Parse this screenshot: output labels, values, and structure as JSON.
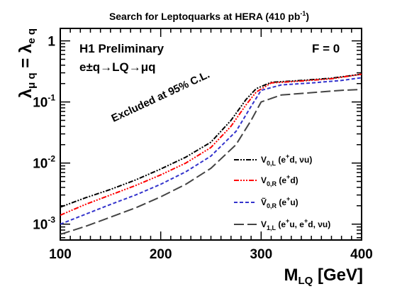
{
  "chart_data": {
    "type": "line",
    "title": "Search for Leptoquarks at HERA (410 pb",
    "title_sup": "-1",
    "title_end": ")",
    "xlabel": "M",
    "xlabel_sub": "LQ",
    "xlabel_unit": " [GeV]",
    "ylabel_main": "λ",
    "ylabel_sub1": "μ q",
    "ylabel_eq": " = λ",
    "ylabel_sub2": "e q",
    "x_range": [
      100,
      400
    ],
    "y_range": [
      0.00055,
      1.6
    ],
    "y_scale": "log",
    "x_ticks": [
      {
        "value": 100,
        "label": "100"
      },
      {
        "value": 200,
        "label": "200"
      },
      {
        "value": 300,
        "label": "300"
      },
      {
        "value": 400,
        "label": "400"
      }
    ],
    "y_ticks": [
      {
        "value": 1,
        "base": "1",
        "exp": ""
      },
      {
        "value": 0.1,
        "base": "10",
        "exp": "-1"
      },
      {
        "value": 0.01,
        "base": "10",
        "exp": "-2"
      },
      {
        "value": 0.001,
        "base": "10",
        "exp": "-3"
      }
    ],
    "annotations": {
      "experiment": "H1 Preliminary",
      "process": "e±q→LQ→μq",
      "flag": "F = 0",
      "excluded": "Excluded at 95% C.L."
    },
    "legend_placement": "bottom-right",
    "series": [
      {
        "name": "V",
        "name_sub": "0,L",
        "name_rest": " (e",
        "name_sup": "+",
        "name_end": "d,  νu)",
        "color": "#000000",
        "dash": "7,2,2,2,2,2",
        "x": [
          100,
          125,
          150,
          175,
          200,
          225,
          250,
          270,
          285,
          295,
          310,
          340,
          370,
          400
        ],
        "y": [
          0.0019,
          0.0027,
          0.0037,
          0.0053,
          0.008,
          0.0125,
          0.022,
          0.05,
          0.11,
          0.165,
          0.21,
          0.225,
          0.245,
          0.285
        ]
      },
      {
        "name": "V",
        "name_sub": "0,R",
        "name_rest": " (e",
        "name_sup": "+",
        "name_end": "d)",
        "color": "#ff0000",
        "dash": "7,2,2,2,2,2,2,2",
        "x": [
          100,
          125,
          150,
          175,
          200,
          225,
          250,
          270,
          285,
          295,
          310,
          340,
          370,
          400
        ],
        "y": [
          0.0014,
          0.0021,
          0.003,
          0.0043,
          0.0064,
          0.01,
          0.018,
          0.04,
          0.09,
          0.145,
          0.205,
          0.22,
          0.24,
          0.285
        ]
      },
      {
        "name": "Ṽ",
        "name_sub": "0,R",
        "name_rest": " (e",
        "name_sup": "+",
        "name_end": "u)",
        "color": "#3333cc",
        "dash": "5,3",
        "x": [
          100,
          125,
          150,
          175,
          200,
          225,
          250,
          275,
          290,
          300,
          320,
          350,
          380,
          400
        ],
        "y": [
          0.001,
          0.00145,
          0.0021,
          0.003,
          0.0045,
          0.0072,
          0.013,
          0.033,
          0.085,
          0.155,
          0.19,
          0.205,
          0.225,
          0.25
        ]
      },
      {
        "name": "V",
        "name_sub": "1,L",
        "name_rest": " (e",
        "name_sup": "+",
        "name_end": "u, e",
        "name_sup2": "+",
        "name_end2": "d, νu)",
        "color": "#444444",
        "dash": "14,5",
        "x": [
          100,
          125,
          150,
          175,
          200,
          225,
          250,
          275,
          290,
          300,
          320,
          350,
          380,
          400
        ],
        "y": [
          0.00068,
          0.00092,
          0.0013,
          0.00185,
          0.0028,
          0.0045,
          0.0082,
          0.02,
          0.05,
          0.1,
          0.13,
          0.142,
          0.155,
          0.16
        ]
      }
    ]
  }
}
